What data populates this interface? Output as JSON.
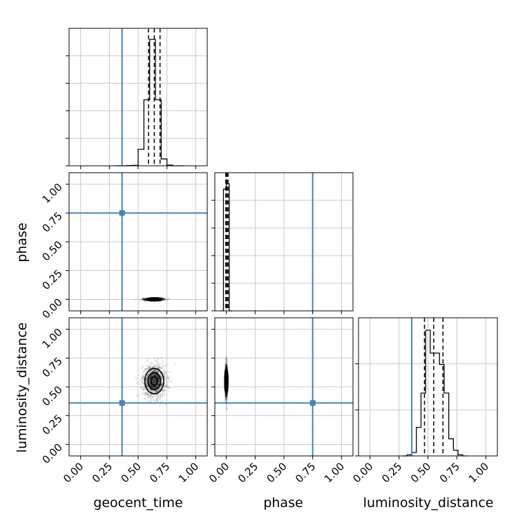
{
  "chart_data": {
    "type": "corner",
    "parameters": [
      "geocent_time",
      "phase",
      "luminosity_distance"
    ],
    "tick_values": [
      0.0,
      0.25,
      0.5,
      0.75,
      1.0
    ],
    "tick_labels": [
      "0.00",
      "0.25",
      "0.50",
      "0.75",
      "1.00"
    ],
    "axis_range": [
      -0.1,
      1.1
    ],
    "grid": true,
    "truths": {
      "geocent_time": 0.36,
      "phase": 0.75,
      "luminosity_distance": 0.36
    },
    "truth_color": "#4682b4",
    "histograms": {
      "geocent_time": {
        "bin_edges": [
          0.3,
          0.35,
          0.4,
          0.45,
          0.5,
          0.55,
          0.6,
          0.65,
          0.7,
          0.75,
          0.8,
          0.85,
          0.9
        ],
        "density": [
          0,
          0,
          0.002,
          0.003,
          0.12,
          0.48,
          0.92,
          0.48,
          0.05,
          0.005,
          0,
          0
        ],
        "quantiles": [
          0.59,
          0.64,
          0.69
        ]
      },
      "phase": {
        "bin_edges": [
          -0.05,
          -0.025,
          0.0,
          0.025,
          0.05
        ],
        "density": [
          0,
          0.45,
          0.47,
          0
        ],
        "quantiles": [
          -0.005,
          0.005,
          0.015
        ]
      },
      "luminosity_distance": {
        "bin_edges": [
          0.28,
          0.32,
          0.36,
          0.4,
          0.44,
          0.48,
          0.52,
          0.56,
          0.6,
          0.64,
          0.68,
          0.72,
          0.76,
          0.8,
          0.84
        ],
        "density": [
          0,
          0.002,
          0.006,
          0.05,
          0.11,
          0.22,
          0.18,
          0.18,
          0.16,
          0.11,
          0.03,
          0.01,
          0.002,
          0
        ],
        "quantiles": [
          0.47,
          0.55,
          0.63
        ]
      }
    },
    "samples_2d": {
      "geocent_time__phase": {
        "x_mean": 0.64,
        "y_mean": 0.0,
        "x_std": 0.04,
        "y_std": 0.006
      },
      "geocent_time__luminosity_distance": {
        "x_mean": 0.64,
        "y_mean": 0.55,
        "x_std": 0.05,
        "y_std": 0.07
      },
      "phase__luminosity_distance": {
        "x_mean": 0.0,
        "y_mean": 0.55,
        "x_std": 0.005,
        "y_std": 0.07
      }
    },
    "contour_levels": [
      0.5,
      1.0,
      1.5
    ]
  }
}
